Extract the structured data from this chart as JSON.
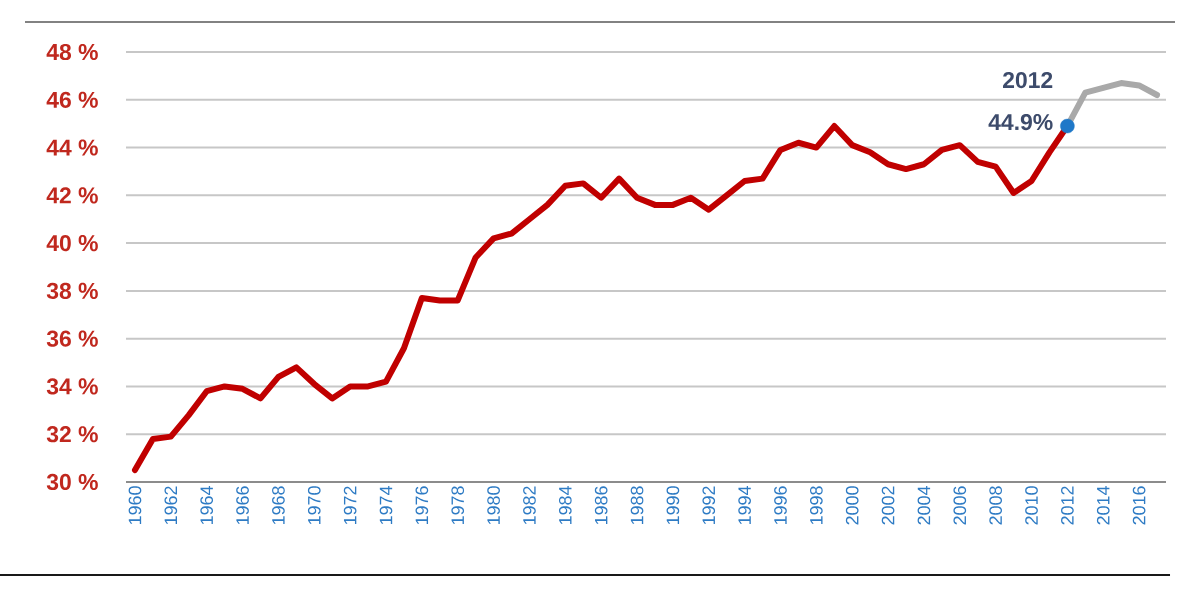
{
  "chart_data": {
    "type": "line",
    "x": [
      1960,
      1961,
      1962,
      1963,
      1964,
      1965,
      1966,
      1967,
      1968,
      1969,
      1970,
      1971,
      1972,
      1973,
      1974,
      1975,
      1976,
      1977,
      1978,
      1979,
      1980,
      1981,
      1982,
      1983,
      1984,
      1985,
      1986,
      1987,
      1988,
      1989,
      1990,
      1991,
      1992,
      1993,
      1994,
      1995,
      1996,
      1997,
      1998,
      1999,
      2000,
      2001,
      2002,
      2003,
      2004,
      2005,
      2006,
      2007,
      2008,
      2009,
      2010,
      2011,
      2012
    ],
    "series": [
      {
        "color": "#c00000",
        "values": [
          30.5,
          31.8,
          31.9,
          32.8,
          33.8,
          34.0,
          33.9,
          33.5,
          34.4,
          34.8,
          34.1,
          33.5,
          34.0,
          34.0,
          34.2,
          35.6,
          37.7,
          37.6,
          37.6,
          39.4,
          40.2,
          40.4,
          41.0,
          41.6,
          42.4,
          42.5,
          41.9,
          42.7,
          41.9,
          41.6,
          41.6,
          41.9,
          41.4,
          42.0,
          42.6,
          42.7,
          43.9,
          44.2,
          44.0,
          44.9,
          44.1,
          43.8,
          43.3,
          43.1,
          43.3,
          43.9,
          44.1,
          43.4,
          43.2,
          42.1,
          42.6,
          43.8,
          44.9
        ]
      },
      {
        "color": "#a9a9a9",
        "x": [
          2012,
          2013,
          2014,
          2015,
          2016,
          2017
        ],
        "values": [
          44.9,
          46.3,
          46.5,
          46.7,
          46.6,
          46.2
        ]
      },
      {
        "type": "scatter",
        "color": "#1f78c8",
        "x": [
          2012
        ],
        "values": [
          44.9
        ]
      }
    ],
    "xlim": [
      1959.5,
      2017.5
    ],
    "xticks": [
      1960,
      1962,
      1964,
      1966,
      1968,
      1970,
      1972,
      1974,
      1976,
      1978,
      1980,
      1982,
      1984,
      1986,
      1988,
      1990,
      1992,
      1994,
      1996,
      1998,
      2000,
      2002,
      2004,
      2006,
      2008,
      2010,
      2012,
      2014,
      2016
    ],
    "ylim": [
      30,
      48
    ],
    "yticks": [
      {
        "value": 30,
        "label": "30 %"
      },
      {
        "value": 32,
        "label": "32 %"
      },
      {
        "value": 34,
        "label": "34 %"
      },
      {
        "value": 36,
        "label": "36 %"
      },
      {
        "value": 38,
        "label": "38 %"
      },
      {
        "value": 40,
        "label": "40 %"
      },
      {
        "value": 42,
        "label": "42 %"
      },
      {
        "value": 44,
        "label": "44 %"
      },
      {
        "value": 46,
        "label": "46 %"
      },
      {
        "value": 48,
        "label": "48 %"
      }
    ],
    "grid": "y",
    "annotations": [
      {
        "text": "2012",
        "x": 2012,
        "y": 44.9
      },
      {
        "text": "44.9%",
        "x": 2012,
        "y": 44.9
      }
    ]
  }
}
